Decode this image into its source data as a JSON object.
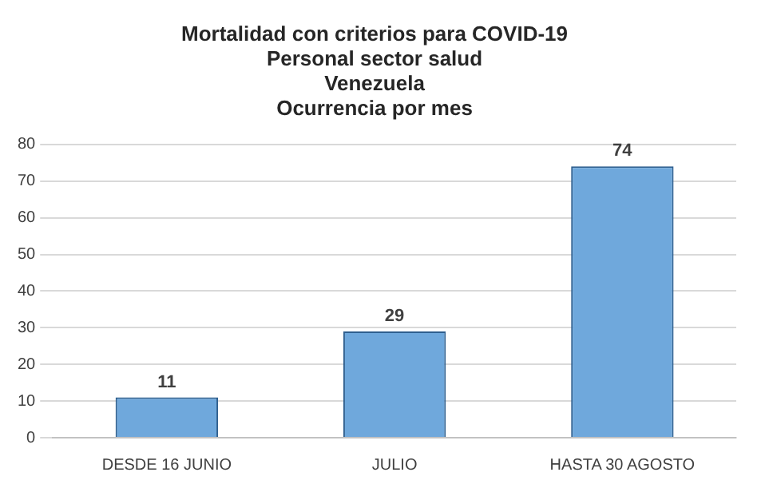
{
  "chart_data": {
    "type": "bar",
    "title": "Mortalidad con criterios para COVID-19\nPersonal sector salud\nVenezuela\nOcurrencia por mes",
    "categories": [
      "DESDE 16 JUNIO",
      "JULIO",
      "HASTA 30 AGOSTO"
    ],
    "values": [
      11,
      29,
      74
    ],
    "color": "#6fa8dc",
    "ylim": [
      0,
      80
    ],
    "yticks": [
      0,
      10,
      20,
      30,
      40,
      50,
      60,
      70,
      80
    ],
    "grid": "y",
    "data_labels": true
  }
}
